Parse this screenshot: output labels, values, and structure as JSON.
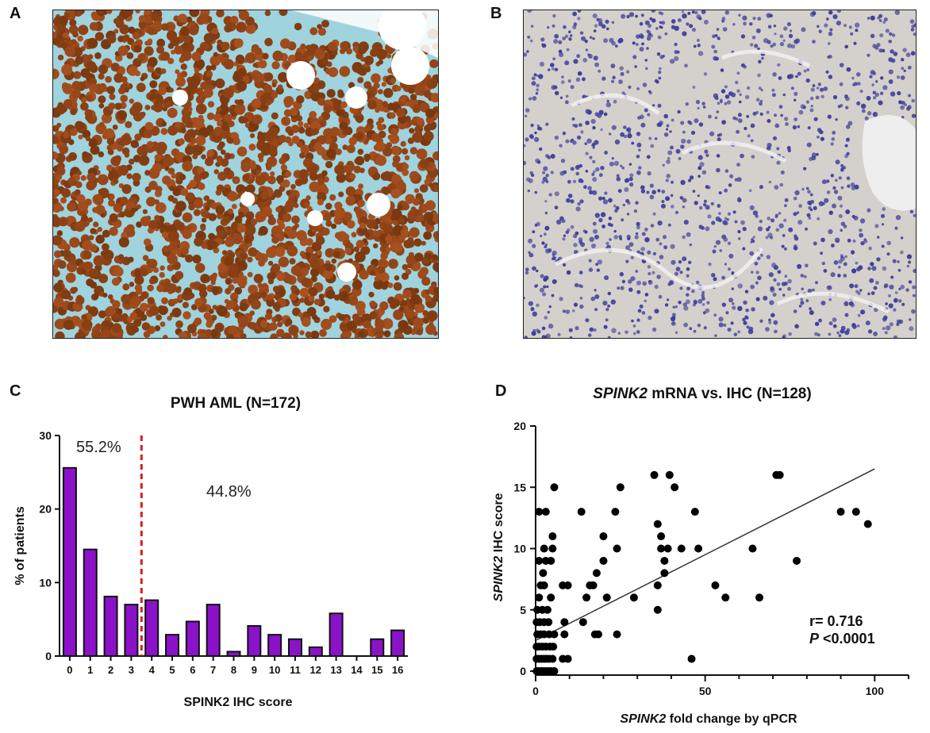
{
  "panels": {
    "A": {
      "letter": "A"
    },
    "B": {
      "letter": "B"
    },
    "C": {
      "letter": "C"
    },
    "D": {
      "letter": "D"
    }
  },
  "colors": {
    "bar_fill": "#8b12c9",
    "bar_stroke": "#111111",
    "cutoff_line": "#d91e1e",
    "ihc_brown": "#8a4513",
    "ihc_blue_bg": "#9fd3de",
    "hema_bg": "#d4d0cc",
    "hema_nuclei": "#3f3f9a"
  },
  "chart_data": [
    {
      "id": "C",
      "type": "bar",
      "title": "PWH AML (N=172)",
      "xlabel": "SPINK2 IHC score",
      "ylabel": "% of patients",
      "categories": [
        "0",
        "1",
        "2",
        "3",
        "4",
        "5",
        "6",
        "7",
        "8",
        "9",
        "10",
        "11",
        "12",
        "13",
        "14",
        "15",
        "16"
      ],
      "values": [
        25.6,
        14.5,
        8.1,
        7.0,
        7.6,
        2.9,
        4.7,
        7.0,
        0.6,
        4.1,
        2.9,
        2.3,
        1.2,
        5.8,
        0,
        2.3,
        3.5
      ],
      "ylim": [
        0,
        30
      ],
      "yticks": [
        "0",
        "10",
        "20",
        "30"
      ],
      "cutoff_x": 3.5,
      "annotations": {
        "left": "55.2%",
        "right": "44.8%"
      }
    },
    {
      "id": "D",
      "type": "scatter",
      "title_italic": "SPINK2",
      "title_rest": " mRNA vs. IHC (N=128)",
      "xlabel_italic": "SPINK2",
      "xlabel_rest": " fold change by qPCR",
      "ylabel_italic": "SPINK2",
      "ylabel_rest": " IHC score",
      "xlim": [
        0,
        110
      ],
      "ylim": [
        0,
        20
      ],
      "xticks": [
        "0",
        "50",
        "100"
      ],
      "yticks": [
        "0",
        "5",
        "10",
        "15",
        "20"
      ],
      "regression": {
        "x": [
          0,
          100
        ],
        "y": [
          2.5,
          16.5
        ]
      },
      "stat_r": "r= 0.716",
      "stat_p_italic": "P",
      "stat_p_rest": " <0.0001",
      "points": [
        [
          0.3,
          0
        ],
        [
          0.8,
          0
        ],
        [
          1.5,
          0
        ],
        [
          2.2,
          0
        ],
        [
          3.0,
          0
        ],
        [
          3.8,
          0
        ],
        [
          4.5,
          0
        ],
        [
          5.5,
          0
        ],
        [
          0.3,
          1
        ],
        [
          1.0,
          1
        ],
        [
          1.8,
          1
        ],
        [
          2.5,
          1
        ],
        [
          3.2,
          1
        ],
        [
          4.0,
          1
        ],
        [
          5.0,
          1
        ],
        [
          8.0,
          1
        ],
        [
          9.5,
          1
        ],
        [
          46,
          1
        ],
        [
          0.3,
          2
        ],
        [
          1.0,
          2
        ],
        [
          2.0,
          2
        ],
        [
          3.0,
          2
        ],
        [
          4.2,
          2
        ],
        [
          5.2,
          2
        ],
        [
          0.5,
          3
        ],
        [
          1.5,
          3
        ],
        [
          2.5,
          3
        ],
        [
          4.0,
          3
        ],
        [
          5.5,
          3
        ],
        [
          8.5,
          3
        ],
        [
          17.5,
          3
        ],
        [
          18.5,
          3
        ],
        [
          24,
          3
        ],
        [
          0.3,
          4
        ],
        [
          1.2,
          4
        ],
        [
          2.5,
          4
        ],
        [
          3.8,
          4
        ],
        [
          8.5,
          4
        ],
        [
          14,
          4
        ],
        [
          0.5,
          5
        ],
        [
          2.0,
          5
        ],
        [
          3.5,
          5
        ],
        [
          36,
          5
        ],
        [
          1.0,
          6
        ],
        [
          4.5,
          6
        ],
        [
          15,
          6
        ],
        [
          21,
          6
        ],
        [
          29,
          6
        ],
        [
          56,
          6
        ],
        [
          66,
          6
        ],
        [
          1.5,
          7
        ],
        [
          2.5,
          7
        ],
        [
          8,
          7
        ],
        [
          9.5,
          7
        ],
        [
          16,
          7
        ],
        [
          17,
          7
        ],
        [
          36,
          7
        ],
        [
          53,
          7
        ],
        [
          2.2,
          8
        ],
        [
          18,
          8
        ],
        [
          38,
          8
        ],
        [
          1.0,
          9
        ],
        [
          3.0,
          9
        ],
        [
          4.5,
          9
        ],
        [
          20,
          9
        ],
        [
          38,
          9
        ],
        [
          77,
          9
        ],
        [
          2.5,
          10
        ],
        [
          5.0,
          10
        ],
        [
          24,
          10
        ],
        [
          37,
          10
        ],
        [
          39,
          10
        ],
        [
          43,
          10
        ],
        [
          48,
          10
        ],
        [
          64,
          10
        ],
        [
          5.0,
          11
        ],
        [
          20,
          11
        ],
        [
          37,
          11
        ],
        [
          36,
          12
        ],
        [
          98,
          12
        ],
        [
          1.0,
          13
        ],
        [
          3.0,
          13
        ],
        [
          13.5,
          13
        ],
        [
          23.5,
          13
        ],
        [
          47,
          13
        ],
        [
          90,
          13
        ],
        [
          94.5,
          13
        ],
        [
          5.5,
          15
        ],
        [
          25,
          15
        ],
        [
          41,
          15
        ],
        [
          35,
          16
        ],
        [
          39.5,
          16
        ],
        [
          71,
          16
        ],
        [
          72,
          16
        ]
      ]
    }
  ]
}
